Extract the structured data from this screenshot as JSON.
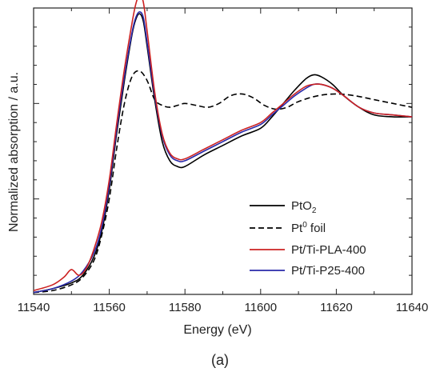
{
  "chart_data": {
    "type": "line",
    "title": "",
    "xlabel": "Energy (eV)",
    "ylabel": "Normalized absorption / a.u.",
    "panel_label": "(a)",
    "xlim": [
      11540,
      11640
    ],
    "ylim": [
      0,
      1.5
    ],
    "x_ticks": [
      11540,
      11560,
      11580,
      11600,
      11620,
      11640
    ],
    "x_tick_labels": [
      "11540",
      "11560",
      "11580",
      "11600",
      "11620",
      "11640"
    ],
    "y_ticks_shown": false,
    "grid": false,
    "legend_position": "lower-right",
    "series": [
      {
        "name": "PtO2",
        "label_main": "PtO",
        "label_sub": "2",
        "label_sup": "",
        "label_tail": "",
        "color": "#000000",
        "dash": "solid",
        "x": [
          11540,
          11545,
          11550,
          11553,
          11556,
          11558,
          11560,
          11562,
          11564,
          11566,
          11567,
          11568,
          11569,
          11570,
          11572,
          11574,
          11576,
          11578,
          11580,
          11585,
          11590,
          11595,
          11600,
          11603,
          11606,
          11609,
          11612,
          11614,
          11616,
          11619,
          11622,
          11626,
          11630,
          11635,
          11640
        ],
        "y": [
          0.01,
          0.03,
          0.06,
          0.1,
          0.2,
          0.33,
          0.55,
          0.85,
          1.12,
          1.36,
          1.44,
          1.47,
          1.43,
          1.3,
          1.02,
          0.8,
          0.7,
          0.67,
          0.67,
          0.73,
          0.78,
          0.83,
          0.87,
          0.93,
          1.0,
          1.07,
          1.13,
          1.15,
          1.14,
          1.1,
          1.04,
          0.98,
          0.94,
          0.93,
          0.93
        ]
      },
      {
        "name": "Pt0 foil",
        "label_main": "Pt",
        "label_sub": "",
        "label_sup": "0",
        "label_tail": " foil",
        "color": "#000000",
        "dash": "dashed",
        "x": [
          11540,
          11545,
          11550,
          11553,
          11556,
          11558,
          11560,
          11562,
          11564,
          11566,
          11568,
          11570,
          11572,
          11574,
          11576,
          11578,
          11580,
          11583,
          11586,
          11589,
          11592,
          11595,
          11598,
          11601,
          11604,
          11607,
          11610,
          11615,
          11620,
          11625,
          11630,
          11635,
          11640
        ],
        "y": [
          0.01,
          0.02,
          0.05,
          0.09,
          0.18,
          0.31,
          0.5,
          0.77,
          1.0,
          1.14,
          1.17,
          1.12,
          1.02,
          0.99,
          0.98,
          0.99,
          1.0,
          0.99,
          0.98,
          1.0,
          1.04,
          1.05,
          1.03,
          0.99,
          0.97,
          0.98,
          1.01,
          1.04,
          1.05,
          1.04,
          1.02,
          1.0,
          0.98
        ]
      },
      {
        "name": "Pt/Ti-PLA-400",
        "label_main": "Pt/Ti-PLA-400",
        "label_sub": "",
        "label_sup": "",
        "label_tail": "",
        "color": "#cc2222",
        "dash": "solid",
        "x": [
          11540,
          11545,
          11548,
          11550,
          11552,
          11554,
          11556,
          11558,
          11560,
          11562,
          11564,
          11566,
          11567,
          11568,
          11569,
          11570,
          11572,
          11574,
          11576,
          11578,
          11580,
          11585,
          11590,
          11595,
          11600,
          11603,
          11606,
          11609,
          11612,
          11614,
          11616,
          11619,
          11622,
          11626,
          11630,
          11635,
          11640
        ],
        "y": [
          0.02,
          0.05,
          0.09,
          0.13,
          0.1,
          0.14,
          0.24,
          0.38,
          0.6,
          0.9,
          1.18,
          1.42,
          1.52,
          1.57,
          1.53,
          1.38,
          1.06,
          0.84,
          0.74,
          0.71,
          0.71,
          0.76,
          0.81,
          0.86,
          0.9,
          0.95,
          1.0,
          1.05,
          1.09,
          1.1,
          1.1,
          1.08,
          1.04,
          0.98,
          0.95,
          0.94,
          0.93
        ]
      },
      {
        "name": "Pt/Ti-P25-400",
        "label_main": "Pt/Ti-P25-400",
        "label_sub": "",
        "label_sup": "",
        "label_tail": "",
        "color": "#2a2aaa",
        "dash": "solid",
        "x": [
          11540,
          11545,
          11550,
          11553,
          11556,
          11558,
          11560,
          11562,
          11564,
          11566,
          11567,
          11568,
          11569,
          11570,
          11572,
          11574,
          11576,
          11578,
          11580,
          11585,
          11590,
          11595,
          11600,
          11603,
          11606,
          11609,
          11612,
          11614,
          11616,
          11619,
          11622,
          11626,
          11630,
          11635,
          11640
        ],
        "y": [
          0.01,
          0.03,
          0.07,
          0.12,
          0.22,
          0.35,
          0.57,
          0.87,
          1.14,
          1.37,
          1.45,
          1.48,
          1.45,
          1.32,
          1.04,
          0.83,
          0.73,
          0.7,
          0.7,
          0.75,
          0.8,
          0.85,
          0.89,
          0.94,
          0.99,
          1.04,
          1.08,
          1.1,
          1.1,
          1.08,
          1.04,
          0.98,
          0.95,
          0.94,
          0.93
        ]
      }
    ]
  }
}
